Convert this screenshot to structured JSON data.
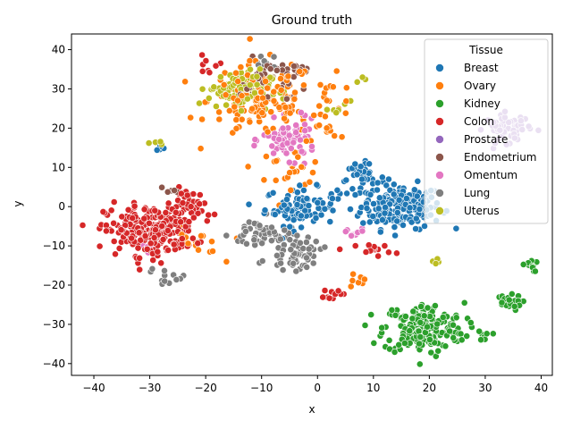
{
  "chart_data": {
    "type": "scatter",
    "title": "Ground truth",
    "xlabel": "x",
    "ylabel": "y",
    "xlim": [
      -44,
      42
    ],
    "ylim": [
      -43,
      44
    ],
    "xticks": [
      -40,
      -30,
      -20,
      -10,
      0,
      10,
      20,
      30,
      40
    ],
    "yticks": [
      -40,
      -30,
      -20,
      -10,
      0,
      10,
      20,
      30,
      40
    ],
    "grid": false,
    "legend": {
      "title": "Tissue",
      "placement": "top-right"
    },
    "series": [
      {
        "name": "Breast",
        "color": "#1f77b4",
        "clusters": [
          {
            "center": [
              15,
              0
            ],
            "spread": [
              4.5,
              3.5
            ],
            "count": 200
          },
          {
            "center": [
              -3,
              0
            ],
            "spread": [
              4,
              3
            ],
            "count": 90
          },
          {
            "center": [
              8,
              7
            ],
            "spread": [
              2.5,
              2.5
            ],
            "count": 40
          },
          {
            "center": [
              -28,
              15
            ],
            "spread": [
              0.6,
              0.6
            ],
            "count": 4
          }
        ]
      },
      {
        "name": "Ovary",
        "color": "#ff7f0e",
        "clusters": [
          {
            "center": [
              -10,
              27
            ],
            "spread": [
              6,
              6
            ],
            "count": 140
          },
          {
            "center": [
              2,
              25
            ],
            "spread": [
              3,
              5
            ],
            "count": 30
          },
          {
            "center": [
              -5,
              10
            ],
            "spread": [
              4,
              3
            ],
            "count": 25
          },
          {
            "center": [
              -22,
              -10
            ],
            "spread": [
              3,
              3
            ],
            "count": 15
          },
          {
            "center": [
              7,
              -19
            ],
            "spread": [
              1.5,
              1.5
            ],
            "count": 8
          }
        ]
      },
      {
        "name": "Kidney",
        "color": "#2ca02c",
        "clusters": [
          {
            "center": [
              19,
              -31
            ],
            "spread": [
              4.5,
              4
            ],
            "count": 200
          },
          {
            "center": [
              34,
              -24.5
            ],
            "spread": [
              1.5,
              1.2
            ],
            "count": 25
          },
          {
            "center": [
              38,
              -15
            ],
            "spread": [
              0.8,
              1
            ],
            "count": 12
          },
          {
            "center": [
              30,
              -33
            ],
            "spread": [
              0.8,
              0.8
            ],
            "count": 8
          }
        ]
      },
      {
        "name": "Colon",
        "color": "#d62728",
        "clusters": [
          {
            "center": [
              -30,
              -6
            ],
            "spread": [
              5,
              4
            ],
            "count": 240
          },
          {
            "center": [
              -22,
              0
            ],
            "spread": [
              2.5,
              3
            ],
            "count": 40
          },
          {
            "center": [
              10,
              -11
            ],
            "spread": [
              2,
              1
            ],
            "count": 15
          },
          {
            "center": [
              3,
              -22
            ],
            "spread": [
              1.2,
              0.8
            ],
            "count": 10
          },
          {
            "center": [
              -20,
              36
            ],
            "spread": [
              2,
              1.5
            ],
            "count": 8
          }
        ]
      },
      {
        "name": "Prostate",
        "color": "#9467bd",
        "clusters": [
          {
            "center": [
              34,
              20
            ],
            "spread": [
              2.5,
              2.2
            ],
            "count": 60
          }
        ]
      },
      {
        "name": "Endometrium",
        "color": "#8c564b",
        "clusters": [
          {
            "center": [
              -9,
              32
            ],
            "spread": [
              3,
              3.5
            ],
            "count": 40
          },
          {
            "center": [
              -3,
              35
            ],
            "spread": [
              1.5,
              1
            ],
            "count": 8
          },
          {
            "center": [
              -27,
              4
            ],
            "spread": [
              1,
              1
            ],
            "count": 5
          }
        ]
      },
      {
        "name": "Omentum",
        "color": "#e377c2",
        "clusters": [
          {
            "center": [
              -5,
              17
            ],
            "spread": [
              3,
              3
            ],
            "count": 80
          },
          {
            "center": [
              6,
              -7
            ],
            "spread": [
              1.5,
              1
            ],
            "count": 10
          },
          {
            "center": [
              -30,
              -10
            ],
            "spread": [
              1,
              1
            ],
            "count": 5
          }
        ]
      },
      {
        "name": "Lung",
        "color": "#7f7f7f",
        "clusters": [
          {
            "center": [
              -10,
              -7
            ],
            "spread": [
              3.5,
              2.5
            ],
            "count": 50
          },
          {
            "center": [
              -4,
              -12
            ],
            "spread": [
              3,
              2.5
            ],
            "count": 55
          },
          {
            "center": [
              -27,
              -18
            ],
            "spread": [
              2,
              1.5
            ],
            "count": 12
          },
          {
            "center": [
              -10,
              37
            ],
            "spread": [
              1.5,
              1
            ],
            "count": 8
          }
        ]
      },
      {
        "name": "Uterus",
        "color": "#bcbd22",
        "clusters": [
          {
            "center": [
              -14,
              30
            ],
            "spread": [
              3.5,
              3
            ],
            "count": 110
          },
          {
            "center": [
              4,
              25
            ],
            "spread": [
              1.2,
              1.2
            ],
            "count": 6
          },
          {
            "center": [
              8,
              32
            ],
            "spread": [
              0.6,
              0.6
            ],
            "count": 3
          },
          {
            "center": [
              -29,
              16
            ],
            "spread": [
              0.8,
              0.5
            ],
            "count": 4
          },
          {
            "center": [
              21,
              -14
            ],
            "spread": [
              1,
              0.5
            ],
            "count": 5
          }
        ]
      }
    ]
  }
}
